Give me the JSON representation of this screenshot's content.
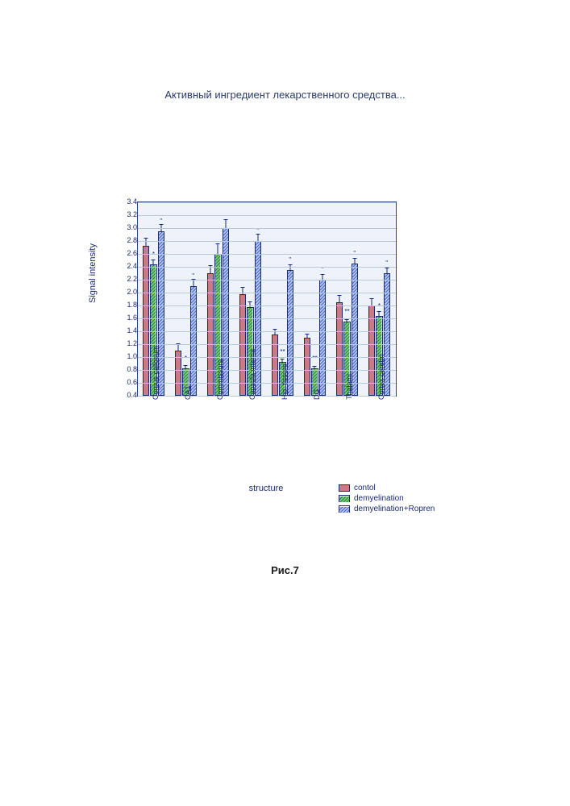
{
  "title_top": "Активный ингредиент лекарственного средства...",
  "caption": "Рис.7",
  "chart": {
    "type": "bar",
    "y_label": "Signal intensity",
    "x_label": "structure",
    "ylim": [
      0.4,
      3.4
    ],
    "ytick_step": 0.2,
    "y_ticks": [
      0.4,
      0.6,
      0.8,
      1.0,
      1.2,
      1.4,
      1.6,
      1.8,
      2.0,
      2.2,
      2.4,
      2.6,
      2.8,
      3.0,
      3.2,
      3.4
    ],
    "plot_bg": "#eef3fb",
    "axis_color": "#244a7c",
    "grid_color": "#b6c7e5",
    "label_fontsize": 11,
    "tick_fontsize": 9,
    "bar_border_color": "#1a2a6a",
    "categories": [
      "Corpus callosum",
      "CA1",
      "Commissura",
      "Capsula interna",
      "Hip. fissure",
      "DG",
      "Thalami",
      "Cortex cerebri"
    ],
    "series": [
      {
        "name": "control",
        "label": "contol",
        "fill": "#c97a8a",
        "hatch": "none",
        "values": [
          2.72,
          1.1,
          2.3,
          1.98,
          1.35,
          1.3,
          1.85,
          1.8
        ],
        "errors": [
          0.14,
          0.12,
          0.14,
          0.12,
          0.1,
          0.08,
          0.12,
          0.12
        ],
        "sig": [
          "",
          "",
          "",
          "",
          "",
          "",
          "",
          ""
        ]
      },
      {
        "name": "demyelination",
        "label": "demyelination",
        "fill": "#78c77a",
        "hatch": "diag",
        "values": [
          2.44,
          0.83,
          2.6,
          1.78,
          0.93,
          0.82,
          1.55,
          1.64
        ],
        "errors": [
          0.08,
          0.06,
          0.18,
          0.1,
          0.06,
          0.05,
          0.05,
          0.08
        ],
        "sig": [
          "*",
          "*",
          "",
          "",
          "**",
          "**",
          "**",
          "*"
        ]
      },
      {
        "name": "demyelination_ropren",
        "label": "demyelination+Ropren",
        "fill": "#6f8fe8",
        "hatch": "diag2",
        "values": [
          2.95,
          2.1,
          3.0,
          2.8,
          2.35,
          2.2,
          2.45,
          2.3
        ],
        "errors": [
          0.12,
          0.12,
          0.15,
          0.12,
          0.1,
          0.1,
          0.1,
          0.1
        ],
        "sig": [
          "''",
          "''",
          "",
          "''",
          "''",
          "''",
          "''",
          "''"
        ]
      }
    ]
  },
  "legend_position": "below-right"
}
